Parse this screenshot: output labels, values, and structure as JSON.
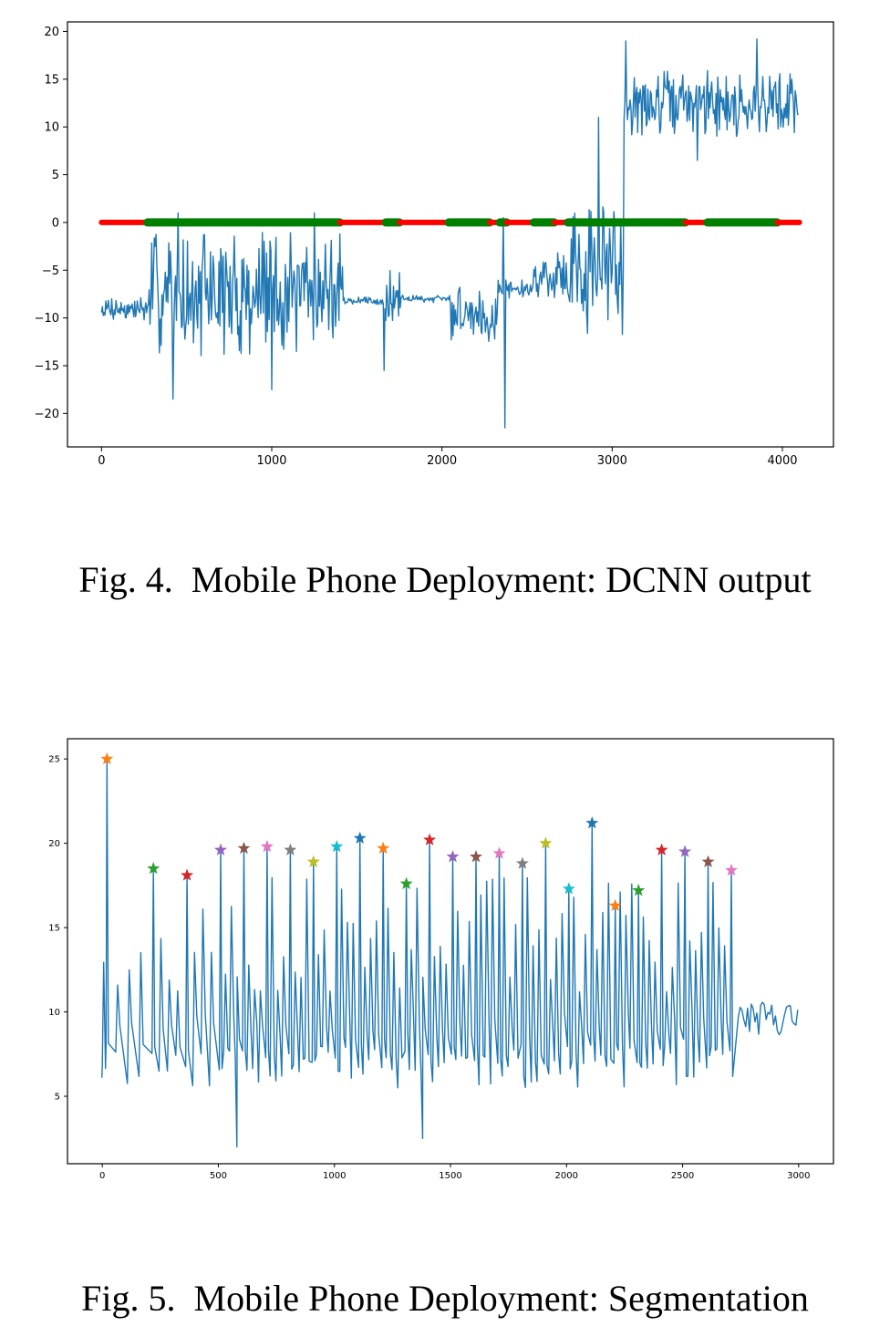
{
  "captions": {
    "fig4": "Fig. 4.  Mobile Phone Deployment: DCNN output",
    "fig5": "Fig. 5.  Mobile Phone Deployment: Segmentation"
  },
  "chart_data": [
    {
      "type": "line",
      "xlim": [
        -200,
        4300
      ],
      "ylim": [
        -23.5,
        21
      ],
      "x_ticks": [
        0,
        1000,
        2000,
        3000,
        4000
      ],
      "y_ticks": [
        -20,
        -15,
        -10,
        -5,
        0,
        5,
        10,
        15,
        20
      ],
      "grid": false,
      "colors": {
        "signal": "#1f77b4",
        "class_0": "#ff0000",
        "class_1": "#008000"
      },
      "signal_segments": [
        {
          "x": [
            0,
            280
          ],
          "baseline": -9,
          "amplitude": 1.5
        },
        {
          "x": [
            280,
            1420
          ],
          "baseline": -7.5,
          "amplitude": 6.5
        },
        {
          "x": [
            1420,
            1660
          ],
          "baseline": -8.2,
          "amplitude": 0.4
        },
        {
          "x": [
            1660,
            1760
          ],
          "baseline": -8.5,
          "amplitude": 3.5
        },
        {
          "x": [
            1760,
            2050
          ],
          "baseline": -8.0,
          "amplitude": 0.4
        },
        {
          "x": [
            2050,
            2330
          ],
          "baseline": -9.5,
          "amplitude": 3.0
        },
        {
          "x": [
            2330,
            2540
          ],
          "baseline": -7.0,
          "amplitude": 1.0
        },
        {
          "x": [
            2540,
            2740
          ],
          "baseline": -5.5,
          "amplitude": 2.5
        },
        {
          "x": [
            2740,
            3070
          ],
          "baseline": -5.0,
          "amplitude": 7.0
        },
        {
          "x": [
            3070,
            4100
          ],
          "baseline": 12.5,
          "amplitude": 3.5
        }
      ],
      "signal_extremes": [
        {
          "x": 420,
          "y": -18.5
        },
        {
          "x": 450,
          "y": 1.0
        },
        {
          "x": 1000,
          "y": -17.5
        },
        {
          "x": 1250,
          "y": 1.0
        },
        {
          "x": 1660,
          "y": -15.5
        },
        {
          "x": 2360,
          "y": 0.5
        },
        {
          "x": 2370,
          "y": -21.5
        },
        {
          "x": 2920,
          "y": 11
        },
        {
          "x": 3080,
          "y": 19
        },
        {
          "x": 3500,
          "y": 6.5
        },
        {
          "x": 3850,
          "y": 19.2
        }
      ],
      "class_segments": [
        {
          "x": [
            0,
            270
          ],
          "class": 0
        },
        {
          "x": [
            270,
            1400
          ],
          "class": 1
        },
        {
          "x": [
            1400,
            1670
          ],
          "class": 0
        },
        {
          "x": [
            1670,
            1750
          ],
          "class": 1
        },
        {
          "x": [
            1750,
            2040
          ],
          "class": 0
        },
        {
          "x": [
            2040,
            2280
          ],
          "class": 1
        },
        {
          "x": [
            2280,
            2340
          ],
          "class": 0
        },
        {
          "x": [
            2340,
            2380
          ],
          "class": 1
        },
        {
          "x": [
            2380,
            2540
          ],
          "class": 0
        },
        {
          "x": [
            2540,
            2660
          ],
          "class": 1
        },
        {
          "x": [
            2660,
            2740
          ],
          "class": 0
        },
        {
          "x": [
            2740,
            3430
          ],
          "class": 1
        },
        {
          "x": [
            3430,
            3560
          ],
          "class": 0
        },
        {
          "x": [
            3560,
            3970
          ],
          "class": 1
        },
        {
          "x": [
            3970,
            4100
          ],
          "class": 0
        }
      ]
    },
    {
      "type": "line",
      "xlim": [
        -150,
        3150
      ],
      "ylim": [
        1,
        26.2
      ],
      "x_ticks": [
        0,
        500,
        1000,
        1500,
        2000,
        2500,
        3000
      ],
      "y_ticks": [
        5,
        10,
        15,
        20,
        25
      ],
      "grid": false,
      "signal_color": "#1f77b4",
      "signal_start": 6.8,
      "signal_tail": {
        "x": [
          2740,
          3000
        ],
        "baseline": 9.6,
        "amplitude": 1.0
      },
      "peaks": [
        {
          "x": 20,
          "y": 25.0,
          "color": "#ff7f0e"
        },
        {
          "x": 220,
          "y": 18.5,
          "color": "#2ca02c"
        },
        {
          "x": 365,
          "y": 18.1,
          "color": "#d62728"
        },
        {
          "x": 510,
          "y": 19.6,
          "color": "#9467bd"
        },
        {
          "x": 610,
          "y": 19.7,
          "color": "#8c564b"
        },
        {
          "x": 710,
          "y": 19.8,
          "color": "#e377c2"
        },
        {
          "x": 810,
          "y": 19.6,
          "color": "#7f7f7f"
        },
        {
          "x": 910,
          "y": 18.9,
          "color": "#bcbd22"
        },
        {
          "x": 1010,
          "y": 19.8,
          "color": "#17becf"
        },
        {
          "x": 1110,
          "y": 20.3,
          "color": "#1f77b4"
        },
        {
          "x": 1210,
          "y": 19.7,
          "color": "#ff7f0e"
        },
        {
          "x": 1310,
          "y": 17.6,
          "color": "#2ca02c"
        },
        {
          "x": 1410,
          "y": 20.2,
          "color": "#d62728"
        },
        {
          "x": 1510,
          "y": 19.2,
          "color": "#9467bd"
        },
        {
          "x": 1610,
          "y": 19.2,
          "color": "#8c564b"
        },
        {
          "x": 1710,
          "y": 19.4,
          "color": "#e377c2"
        },
        {
          "x": 1810,
          "y": 18.8,
          "color": "#7f7f7f"
        },
        {
          "x": 1910,
          "y": 20.0,
          "color": "#bcbd22"
        },
        {
          "x": 2010,
          "y": 17.3,
          "color": "#17becf"
        },
        {
          "x": 2110,
          "y": 21.2,
          "color": "#1f77b4"
        },
        {
          "x": 2210,
          "y": 16.3,
          "color": "#ff7f0e"
        },
        {
          "x": 2310,
          "y": 17.2,
          "color": "#2ca02c"
        },
        {
          "x": 2410,
          "y": 19.6,
          "color": "#d62728"
        },
        {
          "x": 2510,
          "y": 19.5,
          "color": "#9467bd"
        },
        {
          "x": 2610,
          "y": 18.9,
          "color": "#8c564b"
        },
        {
          "x": 2710,
          "y": 18.4,
          "color": "#e377c2"
        }
      ],
      "troughs": [
        {
          "x": 580,
          "y": 2.0
        },
        {
          "x": 1380,
          "y": 2.5
        }
      ]
    }
  ]
}
